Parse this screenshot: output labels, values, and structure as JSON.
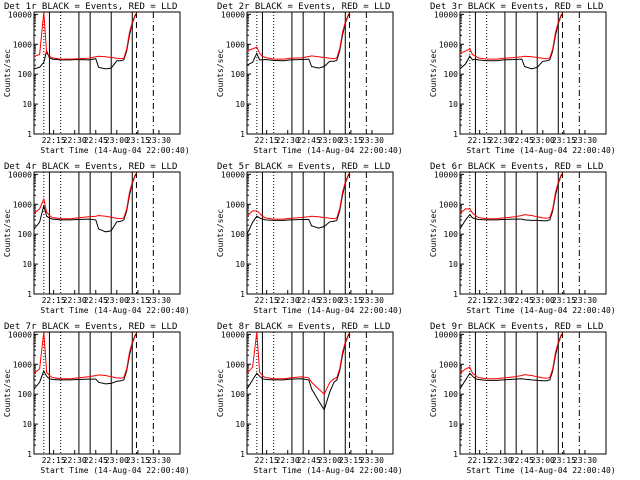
{
  "colors": {
    "events": "#000000",
    "lld": "#ff0000",
    "background": "#ffffff"
  },
  "chart_data": [
    {
      "type": "line",
      "title": "Det 1r BLACK = Events, RED = LLD",
      "xlabel": "Start Time (14-Aug-04 22:00:40)",
      "ylabel": "Counts/sec",
      "yscale": "log",
      "ylim": [
        1,
        12000
      ],
      "x_tick_labels": [
        "22:15",
        "22:30",
        "22:45",
        "23:00",
        "23:15",
        "23:30"
      ],
      "y_tick_labels": [
        "1",
        "10",
        "100",
        "1000",
        "10000"
      ],
      "x": [
        "22:01",
        "22:05",
        "22:08",
        "22:10",
        "22:12",
        "22:14",
        "22:20",
        "22:27",
        "22:32",
        "22:40",
        "22:45",
        "22:47",
        "22:52",
        "22:56",
        "23:00",
        "23:03",
        "23:05",
        "23:07",
        "23:09",
        "23:11",
        "23:13",
        "23:14"
      ],
      "series": [
        {
          "values": [
            150,
            170,
            250,
            600,
            350,
            320,
            300,
            300,
            310,
            300,
            330,
            170,
            150,
            160,
            280,
            280,
            300,
            600,
            2000,
            5000,
            9000,
            10000
          ]
        },
        {
          "values": [
            400,
            450,
            12000,
            500,
            400,
            350,
            320,
            320,
            330,
            340,
            380,
            400,
            380,
            360,
            340,
            330,
            340,
            700,
            2500,
            5500,
            9500,
            11000
          ]
        }
      ]
    },
    {
      "type": "line",
      "title": "Det 2r BLACK = Events, RED = LLD",
      "xlabel": "Start Time (14-Aug-04 22:00:40)",
      "ylabel": "Counts/sec",
      "yscale": "log",
      "ylim": [
        1,
        12000
      ],
      "x_tick_labels": [
        "22:15",
        "22:30",
        "22:45",
        "23:00",
        "23:15",
        "23:30"
      ],
      "y_tick_labels": [
        "1",
        "10",
        "100",
        "1000",
        "10000"
      ],
      "x": [
        "22:01",
        "22:05",
        "22:08",
        "22:10",
        "22:12",
        "22:14",
        "22:20",
        "22:27",
        "22:32",
        "22:40",
        "22:45",
        "22:47",
        "22:52",
        "22:56",
        "23:00",
        "23:03",
        "23:05",
        "23:07",
        "23:09",
        "23:11",
        "23:13",
        "23:14"
      ],
      "series": [
        {
          "values": [
            200,
            250,
            500,
            300,
            300,
            310,
            290,
            280,
            300,
            310,
            320,
            180,
            160,
            180,
            270,
            270,
            290,
            600,
            2000,
            5000,
            9000,
            10000
          ]
        },
        {
          "values": [
            600,
            700,
            800,
            500,
            400,
            360,
            320,
            320,
            340,
            350,
            390,
            410,
            380,
            360,
            340,
            330,
            350,
            700,
            2500,
            5500,
            9500,
            11000
          ]
        }
      ]
    },
    {
      "type": "line",
      "title": "Det 3r BLACK = Events, RED = LLD",
      "xlabel": "Start Time (14-Aug-04 22:00:40)",
      "ylabel": "Counts/sec",
      "yscale": "log",
      "ylim": [
        1,
        12000
      ],
      "x_tick_labels": [
        "22:15",
        "22:30",
        "22:45",
        "23:00",
        "23:15",
        "23:30"
      ],
      "y_tick_labels": [
        "1",
        "10",
        "100",
        "1000",
        "10000"
      ],
      "x": [
        "22:01",
        "22:05",
        "22:08",
        "22:10",
        "22:12",
        "22:14",
        "22:20",
        "22:27",
        "22:32",
        "22:40",
        "22:45",
        "22:47",
        "22:52",
        "22:56",
        "23:00",
        "23:03",
        "23:05",
        "23:07",
        "23:09",
        "23:11",
        "23:13",
        "23:14"
      ],
      "series": [
        {
          "values": [
            150,
            220,
            400,
            300,
            320,
            300,
            280,
            280,
            300,
            310,
            320,
            180,
            150,
            170,
            270,
            280,
            300,
            600,
            2000,
            5000,
            9000,
            10000
          ]
        },
        {
          "values": [
            500,
            600,
            700,
            450,
            400,
            350,
            320,
            320,
            340,
            360,
            380,
            400,
            380,
            360,
            340,
            330,
            350,
            700,
            2500,
            5500,
            9500,
            11000
          ]
        }
      ]
    },
    {
      "type": "line",
      "title": "Det 4r BLACK = Events, RED = LLD",
      "xlabel": "Start Time (14-Aug-04 22:00:40)",
      "ylabel": "Counts/sec",
      "yscale": "log",
      "ylim": [
        1,
        12000
      ],
      "x_tick_labels": [
        "22:15",
        "22:30",
        "22:45",
        "23:00",
        "23:15",
        "23:30"
      ],
      "y_tick_labels": [
        "1",
        "10",
        "100",
        "1000",
        "10000"
      ],
      "x": [
        "22:01",
        "22:05",
        "22:08",
        "22:10",
        "22:12",
        "22:14",
        "22:20",
        "22:27",
        "22:32",
        "22:40",
        "22:45",
        "22:47",
        "22:52",
        "22:56",
        "23:00",
        "23:03",
        "23:05",
        "23:07",
        "23:09",
        "23:11",
        "23:13",
        "23:14"
      ],
      "series": [
        {
          "values": [
            150,
            250,
            900,
            400,
            350,
            320,
            300,
            300,
            310,
            320,
            300,
            150,
            120,
            130,
            260,
            270,
            300,
            600,
            2000,
            5000,
            9000,
            10000
          ]
        },
        {
          "values": [
            500,
            700,
            1500,
            550,
            420,
            360,
            330,
            330,
            350,
            380,
            400,
            420,
            400,
            370,
            340,
            330,
            350,
            700,
            2500,
            5500,
            9500,
            11000
          ]
        }
      ]
    },
    {
      "type": "line",
      "title": "Det 5r BLACK = Events, RED = LLD",
      "xlabel": "Start Time (14-Aug-04 22:00:40)",
      "ylabel": "Counts/sec",
      "yscale": "log",
      "ylim": [
        1,
        12000
      ],
      "x_tick_labels": [
        "22:15",
        "22:30",
        "22:45",
        "23:00",
        "23:15",
        "23:30"
      ],
      "y_tick_labels": [
        "1",
        "10",
        "100",
        "1000",
        "10000"
      ],
      "x": [
        "22:01",
        "22:05",
        "22:08",
        "22:10",
        "22:12",
        "22:14",
        "22:20",
        "22:27",
        "22:32",
        "22:40",
        "22:45",
        "22:47",
        "22:52",
        "22:56",
        "23:00",
        "23:03",
        "23:05",
        "23:07",
        "23:09",
        "23:11",
        "23:13",
        "23:14"
      ],
      "series": [
        {
          "values": [
            100,
            250,
            400,
            350,
            320,
            300,
            290,
            290,
            300,
            310,
            310,
            190,
            160,
            180,
            260,
            270,
            290,
            600,
            2000,
            5000,
            9000,
            10000
          ]
        },
        {
          "values": [
            400,
            600,
            600,
            500,
            400,
            350,
            320,
            320,
            340,
            360,
            380,
            400,
            380,
            360,
            340,
            330,
            350,
            700,
            2500,
            5500,
            9500,
            11000
          ]
        }
      ]
    },
    {
      "type": "line",
      "title": "Det 6r BLACK = Events, RED = LLD",
      "xlabel": "Start Time (14-Aug-04 22:00:40)",
      "ylabel": "Counts/sec",
      "yscale": "log",
      "ylim": [
        1,
        12000
      ],
      "x_tick_labels": [
        "22:15",
        "22:30",
        "22:45",
        "23:00",
        "23:15",
        "23:30"
      ],
      "y_tick_labels": [
        "1",
        "10",
        "100",
        "1000",
        "10000"
      ],
      "x": [
        "22:01",
        "22:05",
        "22:08",
        "22:10",
        "22:12",
        "22:14",
        "22:20",
        "22:27",
        "22:32",
        "22:40",
        "22:45",
        "22:47",
        "22:52",
        "22:56",
        "23:00",
        "23:03",
        "23:05",
        "23:07",
        "23:09",
        "23:11",
        "23:13",
        "23:14"
      ],
      "series": [
        {
          "values": [
            150,
            300,
            450,
            350,
            330,
            310,
            300,
            300,
            310,
            320,
            320,
            300,
            290,
            290,
            280,
            280,
            300,
            600,
            2000,
            5000,
            9000,
            10000
          ]
        },
        {
          "values": [
            500,
            700,
            700,
            500,
            420,
            360,
            330,
            330,
            350,
            380,
            420,
            450,
            420,
            380,
            350,
            340,
            360,
            700,
            2500,
            5500,
            9500,
            11000
          ]
        }
      ]
    },
    {
      "type": "line",
      "title": "Det 7r BLACK = Events, RED = LLD",
      "xlabel": "Start Time (14-Aug-04 22:00:40)",
      "ylabel": "Counts/sec",
      "yscale": "log",
      "ylim": [
        1,
        12000
      ],
      "x_tick_labels": [
        "22:15",
        "22:30",
        "22:45",
        "23:00",
        "23:15",
        "23:30"
      ],
      "y_tick_labels": [
        "1",
        "10",
        "100",
        "1000",
        "10000"
      ],
      "x": [
        "22:01",
        "22:05",
        "22:08",
        "22:10",
        "22:12",
        "22:14",
        "22:20",
        "22:27",
        "22:32",
        "22:40",
        "22:45",
        "22:47",
        "22:52",
        "22:56",
        "23:00",
        "23:03",
        "23:05",
        "23:07",
        "23:09",
        "23:11",
        "23:13",
        "23:14"
      ],
      "series": [
        {
          "values": [
            150,
            250,
            600,
            400,
            330,
            310,
            300,
            300,
            310,
            320,
            320,
            250,
            220,
            230,
            270,
            280,
            300,
            600,
            2000,
            5000,
            9000,
            10000
          ]
        },
        {
          "values": [
            500,
            700,
            12000,
            550,
            420,
            360,
            330,
            330,
            350,
            380,
            420,
            440,
            420,
            380,
            350,
            340,
            360,
            700,
            2500,
            5500,
            9500,
            11000
          ]
        }
      ]
    },
    {
      "type": "line",
      "title": "Det 8r BLACK = Events, RED = LLD",
      "xlabel": "Start Time (14-Aug-04 22:00:40)",
      "ylabel": "Counts/sec",
      "yscale": "log",
      "ylim": [
        1,
        12000
      ],
      "x_tick_labels": [
        "22:15",
        "22:30",
        "22:45",
        "23:00",
        "23:15",
        "23:30"
      ],
      "y_tick_labels": [
        "1",
        "10",
        "100",
        "1000",
        "10000"
      ],
      "x": [
        "22:01",
        "22:05",
        "22:08",
        "22:10",
        "22:12",
        "22:14",
        "22:20",
        "22:27",
        "22:32",
        "22:40",
        "22:45",
        "22:47",
        "22:52",
        "22:56",
        "23:00",
        "23:03",
        "23:05",
        "23:07",
        "23:09",
        "23:11",
        "23:13",
        "23:14"
      ],
      "series": [
        {
          "values": [
            150,
            300,
            500,
            400,
            330,
            310,
            300,
            300,
            320,
            330,
            300,
            150,
            60,
            30,
            120,
            250,
            300,
            600,
            2000,
            5000,
            9000,
            10000
          ]
        },
        {
          "values": [
            500,
            800,
            12000,
            550,
            420,
            360,
            330,
            330,
            350,
            380,
            350,
            250,
            150,
            100,
            250,
            330,
            360,
            700,
            2500,
            5500,
            9500,
            11000
          ]
        }
      ]
    },
    {
      "type": "line",
      "title": "Det 9r BLACK = Events, RED = LLD",
      "xlabel": "Start Time (14-Aug-04 22:00:40)",
      "ylabel": "Counts/sec",
      "yscale": "log",
      "ylim": [
        1,
        12000
      ],
      "x_tick_labels": [
        "22:15",
        "22:30",
        "22:45",
        "23:00",
        "23:15",
        "23:30"
      ],
      "y_tick_labels": [
        "1",
        "10",
        "100",
        "1000",
        "10000"
      ],
      "x": [
        "22:01",
        "22:05",
        "22:08",
        "22:10",
        "22:12",
        "22:14",
        "22:20",
        "22:27",
        "22:32",
        "22:40",
        "22:45",
        "22:47",
        "22:52",
        "22:56",
        "23:00",
        "23:03",
        "23:05",
        "23:07",
        "23:09",
        "23:11",
        "23:13",
        "23:14"
      ],
      "series": [
        {
          "values": [
            150,
            300,
            500,
            400,
            330,
            310,
            290,
            290,
            300,
            320,
            330,
            320,
            300,
            290,
            280,
            280,
            300,
            600,
            2000,
            5000,
            9000,
            10000
          ]
        },
        {
          "values": [
            500,
            700,
            800,
            500,
            420,
            360,
            330,
            330,
            350,
            380,
            420,
            450,
            420,
            380,
            350,
            340,
            360,
            700,
            2500,
            5500,
            9500,
            11000
          ]
        }
      ]
    }
  ]
}
